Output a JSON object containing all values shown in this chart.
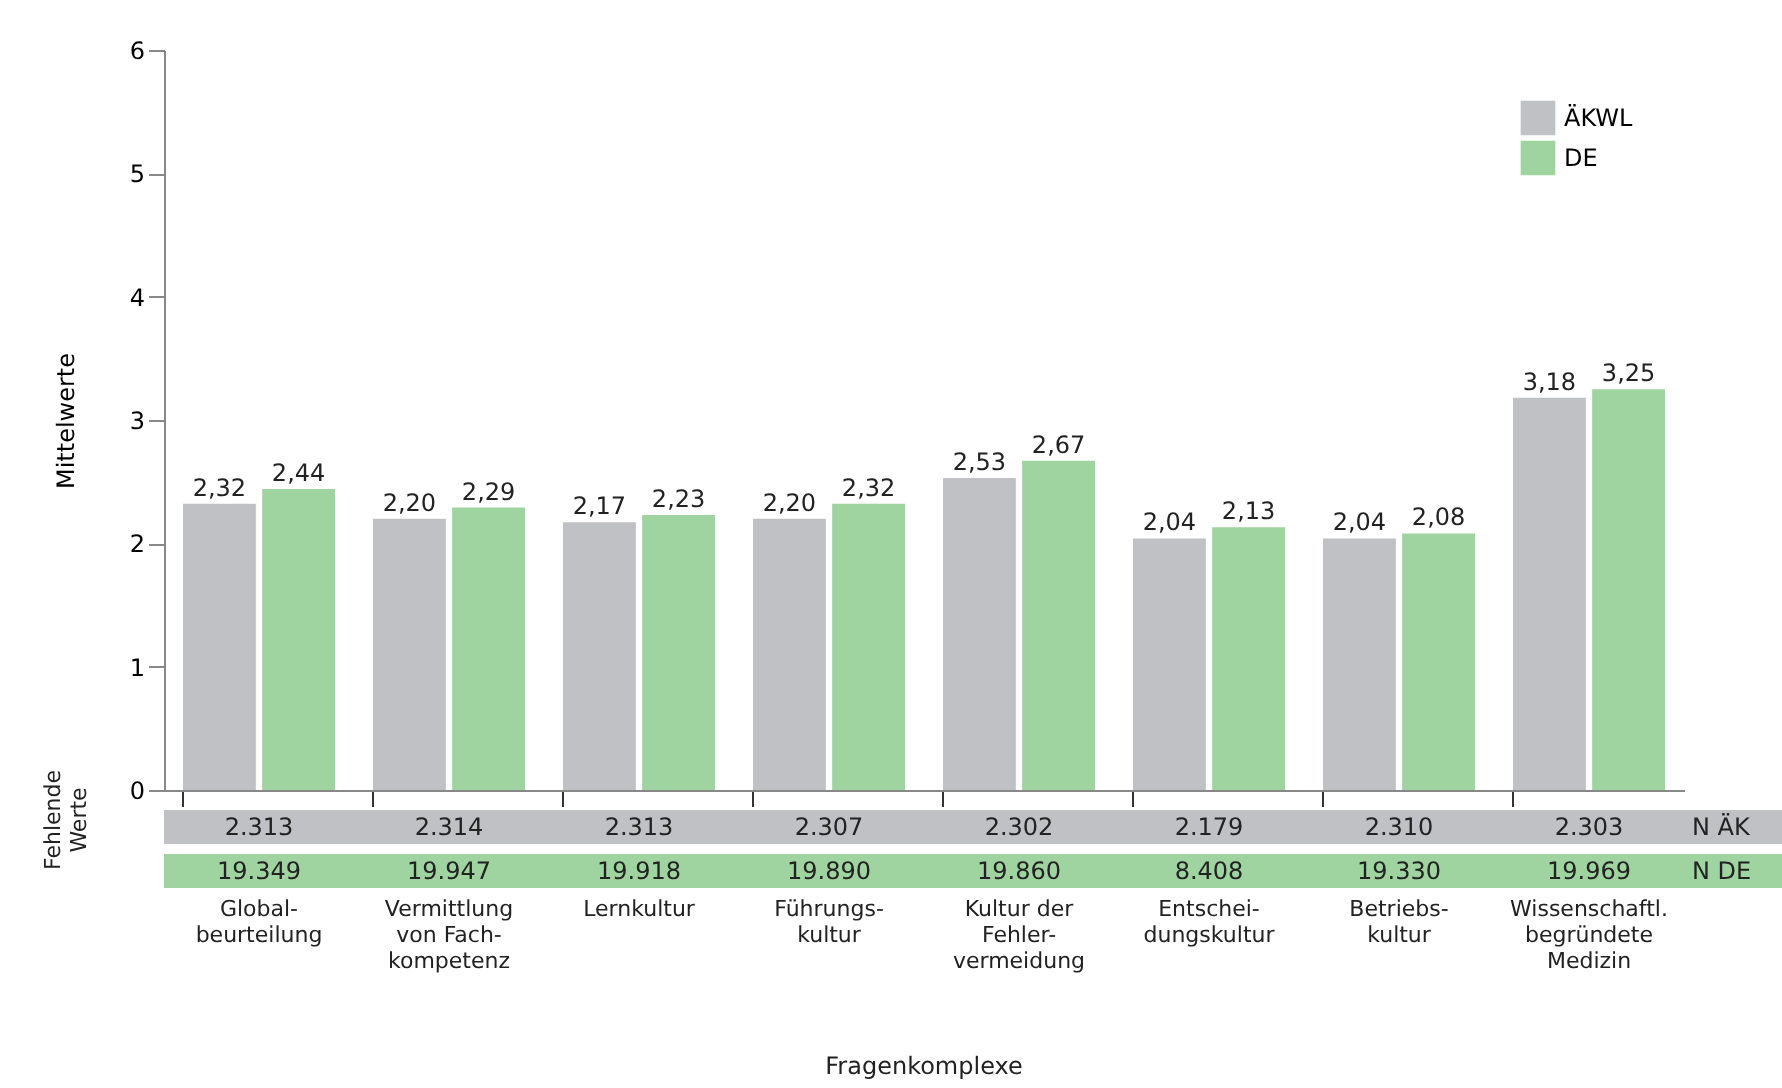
{
  "chart_data": {
    "type": "bar",
    "ylabel": "Mittelwerte",
    "xlabel": "Fragenkomplexe",
    "categories": [
      "Global-\nbeurteilung",
      "Vermittlung\nvon Fach-\nkompetenz",
      "Lernkultur",
      "Führungs-\nkultur",
      "Kultur der\nFehler-\nvermeidung",
      "Entschei-\ndungskultur",
      "Betriebs-\nkultur",
      "Wissenschaftl.\nbegründete\nMedizin"
    ],
    "series": [
      {
        "name": "ÄKWL",
        "color": "#c0c1c4",
        "values": [
          2.32,
          2.2,
          2.17,
          2.2,
          2.53,
          2.04,
          2.04,
          3.18
        ],
        "value_labels": [
          "2,32",
          "2,20",
          "2,17",
          "2,20",
          "2,53",
          "2,04",
          "2,04",
          "3,18"
        ]
      },
      {
        "name": "DE",
        "color": "#9fd3a0",
        "values": [
          2.44,
          2.29,
          2.23,
          2.32,
          2.67,
          2.13,
          2.08,
          3.25
        ],
        "value_labels": [
          "2,44",
          "2,29",
          "2,23",
          "2,32",
          "2,67",
          "2,13",
          "2,08",
          "3,25"
        ]
      }
    ],
    "annotations": [
      "Fehlende\nWerte",
      "2.313",
      "2.314",
      "2.313",
      "2.307",
      "2.302",
      "2.179",
      "2.310",
      "2.303",
      "N ÄK",
      "19.349",
      "19.947",
      "19.918",
      "19.890",
      "19.860",
      "8.408",
      "19.330",
      "19.969",
      "N DE"
    ],
    "ylim": [
      0,
      6
    ],
    "yticks": [
      0,
      1,
      2,
      3,
      4,
      5,
      6
    ],
    "grid": false,
    "legend": "top right"
  }
}
